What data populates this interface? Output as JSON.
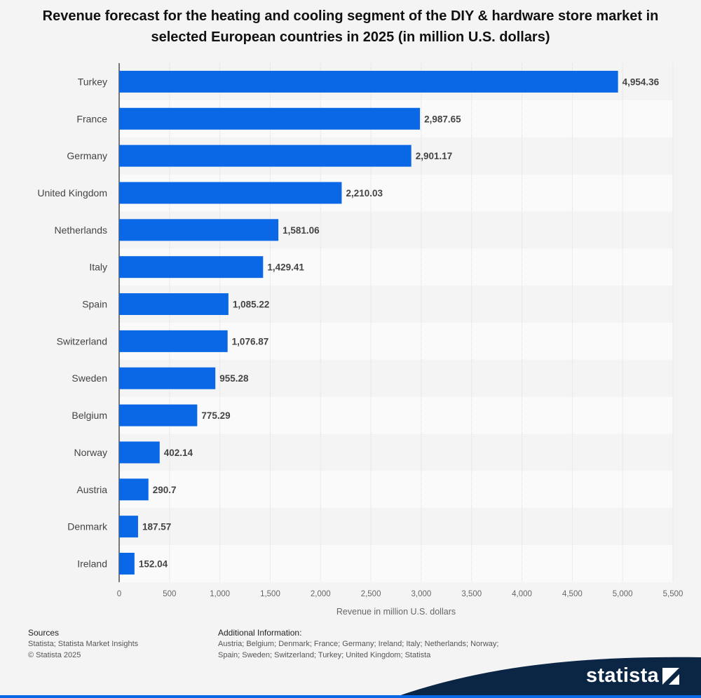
{
  "title": "Revenue forecast for the heating and cooling segment of the DIY & hardware store market in selected European countries in 2025 (in million U.S. dollars)",
  "chart_data": {
    "type": "bar",
    "orientation": "horizontal",
    "categories": [
      "Turkey",
      "France",
      "Germany",
      "United Kingdom",
      "Netherlands",
      "Italy",
      "Spain",
      "Switzerland",
      "Sweden",
      "Belgium",
      "Norway",
      "Austria",
      "Denmark",
      "Ireland"
    ],
    "values": [
      4954.36,
      2987.65,
      2901.17,
      2210.03,
      1581.06,
      1429.41,
      1085.22,
      1076.87,
      955.28,
      775.29,
      402.14,
      290.7,
      187.57,
      152.04
    ],
    "value_labels": [
      "4,954.36",
      "2,987.65",
      "2,901.17",
      "2,210.03",
      "1,581.06",
      "1,429.41",
      "1,085.22",
      "1,076.87",
      "955.28",
      "775.29",
      "402.14",
      "290.7",
      "187.57",
      "152.04"
    ],
    "xticks": [
      0,
      500,
      1000,
      1500,
      2000,
      2500,
      3000,
      3500,
      4000,
      4500,
      5000,
      5500
    ],
    "xtick_labels": [
      "0",
      "500",
      "1,000",
      "1,500",
      "2,000",
      "2,500",
      "3,000",
      "3,500",
      "4,000",
      "4,500",
      "5,000",
      "5,500"
    ],
    "xlim": [
      0,
      5500
    ],
    "xlabel": "Revenue in million U.S. dollars",
    "ylabel": "",
    "grid": true,
    "bar_color": "#0a68e6"
  },
  "footer": {
    "sources_heading": "Sources",
    "sources_line1": "Statista; Statista Market Insights",
    "sources_line2": "© Statista 2025",
    "additional_heading": "Additional Information:",
    "additional_text": "Austria; Belgium; Denmark; France; Germany; Ireland; Italy; Netherlands; Norway; Spain; Sweden; Switzerland; Turkey; United Kingdom; Statista"
  },
  "brand": {
    "logo_text": "statista",
    "logo_icon": "statista-logo-icon",
    "band_color": "#0b2545",
    "accent_color": "#0a68e6"
  }
}
